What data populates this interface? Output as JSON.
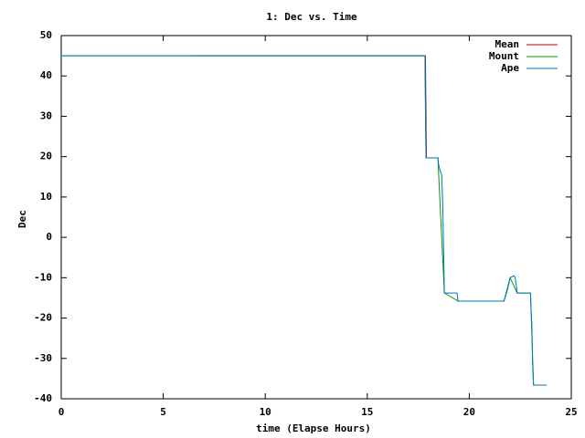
{
  "chart_data": {
    "type": "line",
    "title": "1: Dec vs. Time",
    "x_label": "time (Elapse Hours)",
    "y_label": "Dec",
    "xlim": [
      0,
      25
    ],
    "xticks": [
      0,
      5,
      10,
      15,
      20,
      25
    ],
    "ylim": [
      -40,
      50
    ],
    "yticks": [
      -40,
      -30,
      -20,
      -10,
      0,
      10,
      20,
      30,
      40,
      50
    ],
    "grid": false,
    "legend": "top-right",
    "series": [
      {
        "name": "Mean",
        "color": "#c00000",
        "x": [
          6.4,
          17.85,
          17.9,
          18.5
        ],
        "values": [
          45,
          45,
          19.7,
          19.7
        ]
      },
      {
        "name": "Mount",
        "color": "#00a000",
        "x": [
          0,
          17.83,
          17.88,
          18.46,
          18.78,
          19.45,
          21.7,
          22.0,
          22.35,
          23.0,
          23.15,
          23.8
        ],
        "values": [
          45,
          45,
          19.7,
          19.7,
          -13.8,
          -15.8,
          -15.8,
          -10,
          -13.8,
          -13.8,
          -36.6,
          -36.6
        ]
      },
      {
        "name": "Ape",
        "color": "#0072bd",
        "x": [
          0,
          17.83,
          17.85,
          17.88,
          18.46,
          18.5,
          18.6,
          18.65,
          18.7,
          18.78,
          19.4,
          19.45,
          21.7,
          21.75,
          21.87,
          22.0,
          22.2,
          22.25,
          22.35,
          23.0,
          23.03,
          23.07,
          23.1,
          23.15,
          23.8
        ],
        "values": [
          45,
          45,
          32,
          19.7,
          19.7,
          18,
          16,
          15.5,
          8,
          -13.8,
          -13.8,
          -15.8,
          -15.8,
          -15,
          -13,
          -10,
          -9.5,
          -10,
          -13.8,
          -13.8,
          -18,
          -22,
          -31,
          -36.6,
          -36.6
        ]
      }
    ]
  }
}
